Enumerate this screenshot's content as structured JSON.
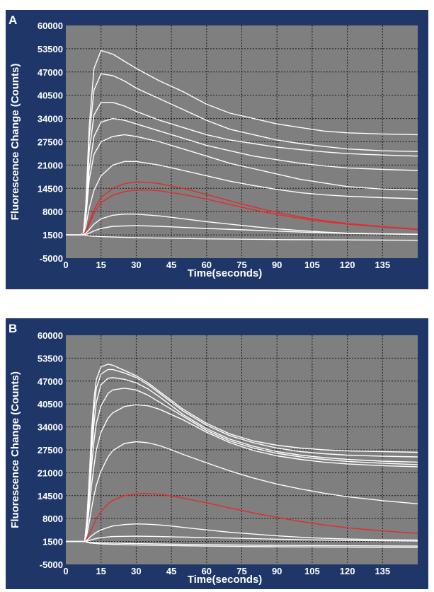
{
  "colors": {
    "panel_bg": "#1f3768",
    "plot_bg": "#7f7f7f",
    "grid": "#1a1a1a",
    "trace": "#ffffff",
    "highlight": "#e32b2b",
    "text": "#ffffff"
  },
  "chart_data": [
    {
      "type": "line",
      "panel_label": "A",
      "xlabel": "Time(seconds)",
      "ylabel": "Fluorescence Change (Counts)",
      "xlim": [
        0,
        150
      ],
      "ylim": [
        -5000,
        60000
      ],
      "xticks": [
        0,
        15,
        30,
        45,
        60,
        75,
        90,
        105,
        120,
        135
      ],
      "yticks": [
        -5000,
        1500,
        8000,
        14500,
        21000,
        27500,
        34000,
        40500,
        47000,
        53500,
        60000
      ],
      "grid": true,
      "series": [
        {
          "color": "#ffffff",
          "x": [
            0,
            6,
            7.5,
            8.5,
            10,
            12,
            15,
            20,
            25,
            30,
            40,
            50,
            60,
            70,
            80,
            90,
            100,
            110,
            120,
            135,
            150
          ],
          "y": [
            1500,
            1500,
            2000,
            10000,
            32000,
            48000,
            53000,
            52000,
            50000,
            48000,
            44500,
            41500,
            38000,
            35500,
            34000,
            32500,
            31500,
            30500,
            30000,
            29700,
            29500
          ]
        },
        {
          "color": "#ffffff",
          "x": [
            0,
            6,
            7.5,
            8.5,
            10,
            12,
            15,
            20,
            25,
            30,
            40,
            50,
            60,
            70,
            80,
            90,
            100,
            110,
            120,
            135,
            150
          ],
          "y": [
            1500,
            1500,
            2000,
            9000,
            29000,
            42000,
            46500,
            46000,
            44500,
            42500,
            39500,
            36500,
            33500,
            31000,
            29500,
            28000,
            27000,
            26200,
            25500,
            25000,
            24800
          ]
        },
        {
          "color": "#ffffff",
          "x": [
            0,
            6,
            7.5,
            8.5,
            10,
            12,
            15,
            20,
            25,
            30,
            40,
            50,
            60,
            70,
            80,
            90,
            100,
            110,
            120,
            135,
            150
          ],
          "y": [
            1500,
            1500,
            2000,
            8000,
            25000,
            35000,
            38500,
            38500,
            37500,
            36000,
            33500,
            31500,
            29500,
            28000,
            27000,
            26000,
            25300,
            24700,
            24200,
            23800,
            23500
          ]
        },
        {
          "color": "#ffffff",
          "x": [
            0,
            6,
            7.5,
            8.5,
            10,
            12,
            15,
            20,
            25,
            30,
            40,
            50,
            60,
            70,
            80,
            90,
            100,
            110,
            120,
            135,
            150
          ],
          "y": [
            1500,
            1500,
            2000,
            7000,
            20000,
            29000,
            33000,
            34000,
            33500,
            32500,
            30500,
            28500,
            26500,
            25000,
            23500,
            22500,
            21500,
            20800,
            20200,
            19800,
            19500
          ]
        },
        {
          "color": "#ffffff",
          "x": [
            0,
            6,
            7.5,
            8.5,
            10,
            12,
            15,
            20,
            25,
            30,
            40,
            50,
            60,
            70,
            80,
            90,
            100,
            110,
            120,
            135,
            150
          ],
          "y": [
            1500,
            1500,
            2000,
            6000,
            17000,
            24000,
            27500,
            29000,
            29500,
            29000,
            27500,
            25500,
            23500,
            21500,
            20000,
            18500,
            17000,
            16000,
            15000,
            14300,
            14000
          ]
        },
        {
          "color": "#ffffff",
          "x": [
            0,
            6,
            7.5,
            8.5,
            10,
            12,
            15,
            20,
            25,
            30,
            40,
            50,
            60,
            70,
            80,
            90,
            100,
            110,
            120,
            135,
            150
          ],
          "y": [
            1500,
            1500,
            1800,
            4000,
            9000,
            14000,
            18000,
            21000,
            22000,
            22000,
            21000,
            19500,
            18000,
            16500,
            15300,
            14200,
            13300,
            12700,
            12300,
            11900,
            11600
          ]
        },
        {
          "color": "#e32b2b",
          "x": [
            0,
            6,
            7.5,
            8.5,
            10,
            12,
            15,
            20,
            25,
            30,
            35,
            40,
            50,
            60,
            70,
            80,
            90,
            100,
            110,
            120,
            135,
            150
          ],
          "y": [
            1500,
            1500,
            1700,
            2500,
            5000,
            8500,
            12000,
            14500,
            15800,
            16300,
            16200,
            15800,
            14500,
            12800,
            11000,
            9300,
            7800,
            6500,
            5500,
            4700,
            3800,
            3100
          ]
        },
        {
          "color": "#e32b2b",
          "x": [
            0,
            6,
            7.5,
            8.5,
            10,
            12,
            15,
            20,
            25,
            30,
            35,
            40,
            50,
            60,
            70,
            80,
            90,
            100,
            110,
            120,
            135,
            150
          ],
          "y": [
            1500,
            1500,
            1700,
            2300,
            4500,
            7500,
            10500,
            12600,
            13600,
            14000,
            14000,
            13800,
            12800,
            11500,
            10000,
            8500,
            7200,
            6100,
            5200,
            4500,
            3700,
            3000
          ]
        },
        {
          "color": "#ffffff",
          "x": [
            0,
            6,
            7.5,
            8.5,
            10,
            12,
            15,
            20,
            25,
            30,
            40,
            50,
            60,
            70,
            80,
            90,
            100,
            110,
            120,
            135,
            150
          ],
          "y": [
            1500,
            1500,
            1600,
            2000,
            3000,
            4500,
            6000,
            7000,
            7300,
            7300,
            6800,
            6000,
            5200,
            4500,
            3800,
            3200,
            2700,
            2300,
            2000,
            1800,
            1700
          ]
        },
        {
          "color": "#ffffff",
          "x": [
            0,
            6,
            7.5,
            8.5,
            10,
            12,
            15,
            20,
            30,
            40,
            60,
            80,
            100,
            120,
            150
          ],
          "y": [
            1500,
            1500,
            1500,
            1600,
            2000,
            2600,
            3300,
            3900,
            4100,
            3900,
            3300,
            2800,
            2300,
            1900,
            1600
          ]
        },
        {
          "color": "#ffffff",
          "x": [
            0,
            6,
            8,
            10,
            15,
            30,
            60,
            90,
            120,
            150
          ],
          "y": [
            1500,
            1500,
            1400,
            1200,
            1000,
            700,
            400,
            200,
            100,
            0
          ]
        }
      ]
    },
    {
      "type": "line",
      "panel_label": "B",
      "xlabel": "Time(seconds)",
      "ylabel": "Fluorescence Change (Counts)",
      "xlim": [
        0,
        150
      ],
      "ylim": [
        -5000,
        60000
      ],
      "xticks": [
        0,
        15,
        30,
        45,
        60,
        75,
        90,
        105,
        120,
        135
      ],
      "yticks": [
        -5000,
        1500,
        8000,
        14500,
        21000,
        27500,
        34000,
        40500,
        47000,
        53500,
        60000
      ],
      "grid": true,
      "series": [
        {
          "color": "#ffffff",
          "x": [
            0,
            8,
            9,
            10,
            11,
            12,
            13,
            15,
            18,
            20,
            25,
            30,
            35,
            40,
            45,
            50,
            60,
            70,
            80,
            90,
            100,
            110,
            120,
            135,
            150
          ],
          "y": [
            1500,
            1500,
            8000,
            20000,
            33000,
            42000,
            47500,
            51000,
            51800,
            51500,
            50000,
            48500,
            46500,
            44000,
            41500,
            39000,
            35000,
            32000,
            30000,
            28800,
            28000,
            27500,
            27200,
            27000,
            26800
          ]
        },
        {
          "color": "#ffffff",
          "x": [
            0,
            8,
            9,
            10,
            11,
            12,
            13,
            15,
            18,
            20,
            25,
            30,
            35,
            40,
            45,
            50,
            60,
            70,
            80,
            90,
            100,
            110,
            120,
            135,
            150
          ],
          "y": [
            1500,
            1500,
            7500,
            18000,
            30000,
            39000,
            45000,
            49000,
            50300,
            50300,
            49300,
            48000,
            46000,
            43500,
            41000,
            38500,
            34500,
            31500,
            29500,
            28000,
            27000,
            26400,
            26000,
            25700,
            25500
          ]
        },
        {
          "color": "#ffffff",
          "x": [
            0,
            8,
            9,
            10,
            11,
            12,
            13,
            15,
            18,
            20,
            25,
            30,
            35,
            40,
            45,
            50,
            60,
            70,
            80,
            90,
            100,
            110,
            120,
            135,
            150
          ],
          "y": [
            1500,
            1500,
            7000,
            16500,
            27000,
            35000,
            41000,
            46000,
            47800,
            48000,
            47500,
            46500,
            44800,
            42500,
            40000,
            37500,
            33500,
            30500,
            28500,
            27000,
            26000,
            25300,
            24800,
            24300,
            24000
          ]
        },
        {
          "color": "#ffffff",
          "x": [
            0,
            8,
            9,
            10,
            11,
            12,
            13,
            15,
            18,
            20,
            25,
            30,
            35,
            40,
            45,
            50,
            60,
            70,
            80,
            90,
            100,
            110,
            120,
            135,
            150
          ],
          "y": [
            1500,
            1500,
            6000,
            14000,
            23000,
            30000,
            35000,
            40000,
            43500,
            44500,
            45000,
            44500,
            43000,
            41000,
            39000,
            37000,
            33000,
            30000,
            28000,
            26500,
            25500,
            24800,
            24200,
            23700,
            23300
          ]
        },
        {
          "color": "#ffffff",
          "x": [
            0,
            8,
            9,
            10,
            11,
            12,
            13,
            15,
            18,
            20,
            25,
            30,
            35,
            40,
            45,
            50,
            60,
            70,
            80,
            90,
            100,
            110,
            120,
            135,
            150
          ],
          "y": [
            1500,
            1500,
            5000,
            11000,
            17500,
            23000,
            27500,
            32500,
            36500,
            38000,
            39800,
            40300,
            40000,
            39000,
            37500,
            36000,
            32500,
            29500,
            27300,
            25800,
            24800,
            24000,
            23500,
            23000,
            22700
          ]
        },
        {
          "color": "#ffffff",
          "x": [
            0,
            8,
            9,
            10,
            11,
            12,
            13,
            15,
            18,
            20,
            25,
            30,
            35,
            40,
            45,
            50,
            60,
            70,
            80,
            90,
            100,
            110,
            120,
            135,
            150
          ],
          "y": [
            1500,
            1500,
            3500,
            7000,
            11000,
            14500,
            17500,
            21500,
            25500,
            27300,
            29300,
            29800,
            29500,
            28700,
            27500,
            26200,
            23800,
            21500,
            19500,
            17800,
            16400,
            15200,
            14200,
            13100,
            12200
          ]
        },
        {
          "color": "#e32b2b",
          "x": [
            0,
            8,
            9,
            10,
            11,
            12,
            13,
            15,
            18,
            20,
            25,
            30,
            35,
            40,
            45,
            50,
            60,
            70,
            80,
            90,
            100,
            110,
            120,
            135,
            150
          ],
          "y": [
            1500,
            1500,
            2300,
            3500,
            5000,
            6500,
            8000,
            10000,
            12200,
            13200,
            14500,
            15000,
            15100,
            14900,
            14400,
            13800,
            12500,
            11000,
            9600,
            8300,
            7200,
            6200,
            5400,
            4500,
            3800
          ]
        },
        {
          "color": "#ffffff",
          "x": [
            0,
            8,
            9,
            10,
            11,
            12,
            13,
            15,
            18,
            20,
            25,
            30,
            35,
            40,
            45,
            50,
            60,
            70,
            80,
            90,
            100,
            110,
            120,
            135,
            150
          ],
          "y": [
            1500,
            1500,
            1900,
            2500,
            3100,
            3600,
            4100,
            4800,
            5500,
            5900,
            6300,
            6500,
            6400,
            6200,
            5900,
            5500,
            4800,
            4100,
            3600,
            3100,
            2700,
            2400,
            2200,
            2000,
            1900
          ]
        },
        {
          "color": "#ffffff",
          "x": [
            0,
            8,
            10,
            12,
            15,
            20,
            30,
            40,
            60,
            80,
            100,
            120,
            150
          ],
          "y": [
            1500,
            1500,
            1800,
            2200,
            2600,
            2900,
            3000,
            2900,
            2600,
            2300,
            2000,
            1800,
            1600
          ]
        },
        {
          "color": "#ffffff",
          "x": [
            0,
            8,
            10,
            15,
            30,
            60,
            90,
            120,
            150
          ],
          "y": [
            1500,
            1500,
            1300,
            1100,
            900,
            600,
            400,
            300,
            200
          ]
        },
        {
          "color": "#ffffff",
          "x": [
            0,
            8,
            10,
            15,
            30,
            60,
            90,
            120,
            150
          ],
          "y": [
            1500,
            1500,
            1100,
            800,
            500,
            200,
            0,
            -100,
            -200
          ]
        }
      ]
    }
  ]
}
